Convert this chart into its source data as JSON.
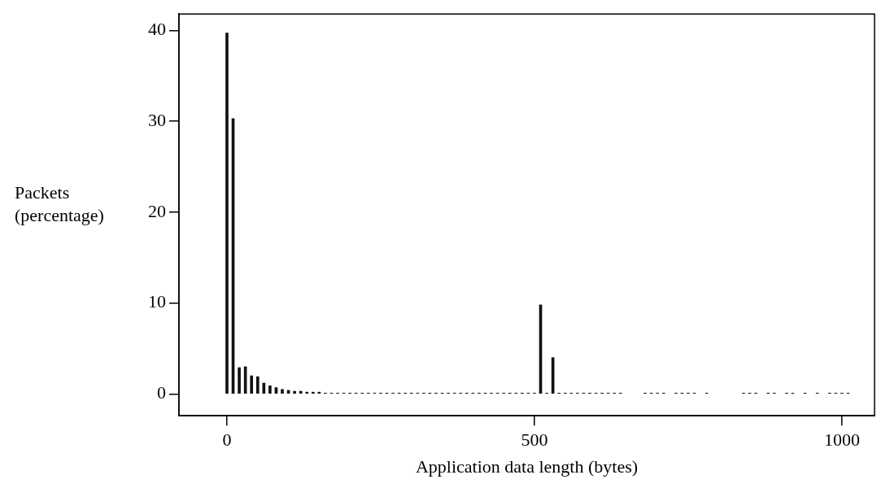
{
  "chart_data": {
    "type": "bar",
    "xlabel": "Application data length (bytes)",
    "ylabel": "Packets (percentage)",
    "color": "#111111",
    "x": [
      0,
      10,
      20,
      30,
      40,
      50,
      60,
      70,
      80,
      90,
      100,
      110,
      120,
      130,
      140,
      150,
      160,
      170,
      180,
      190,
      200,
      210,
      220,
      230,
      240,
      250,
      260,
      270,
      280,
      290,
      300,
      310,
      320,
      330,
      340,
      350,
      360,
      370,
      380,
      390,
      400,
      410,
      420,
      430,
      440,
      450,
      460,
      470,
      480,
      490,
      500,
      510,
      520,
      530,
      540,
      550,
      560,
      570,
      580,
      590,
      600,
      610,
      620,
      630,
      640,
      680,
      690,
      700,
      710,
      730,
      740,
      750,
      760,
      780,
      840,
      850,
      860,
      880,
      890,
      910,
      920,
      940,
      960,
      980,
      990,
      1000,
      1010
    ],
    "values": [
      39.7,
      30.3,
      2.9,
      3.0,
      2.0,
      1.9,
      1.2,
      0.9,
      0.7,
      0.5,
      0.4,
      0.3,
      0.3,
      0.2,
      0.2,
      0.2,
      0.1,
      0.1,
      0.1,
      0.1,
      0.1,
      0.1,
      0.1,
      0.1,
      0.1,
      0.1,
      0.1,
      0.1,
      0.1,
      0.1,
      0.1,
      0.1,
      0.1,
      0.1,
      0.1,
      0.1,
      0.1,
      0.1,
      0.1,
      0.1,
      0.1,
      0.1,
      0.1,
      0.1,
      0.1,
      0.1,
      0.1,
      0.1,
      0.1,
      0.1,
      0.1,
      9.8,
      0.1,
      4.0,
      0.1,
      0.1,
      0.1,
      0.1,
      0.1,
      0.1,
      0.1,
      0.1,
      0.1,
      0.1,
      0.1,
      0.1,
      0.1,
      0.1,
      0.1,
      0.1,
      0.1,
      0.1,
      0.1,
      0.1,
      0.1,
      0.1,
      0.1,
      0.1,
      0.1,
      0.1,
      0.1,
      0.1,
      0.1,
      0.1,
      0.1,
      0.1,
      0.1
    ],
    "xlim": [
      -78,
      1053
    ],
    "xticks": [
      0,
      500,
      1000
    ],
    "ylim": [
      -2.4,
      41.8
    ],
    "yticks": [
      0,
      10,
      20,
      30,
      40
    ],
    "grid": false,
    "legend": false
  }
}
